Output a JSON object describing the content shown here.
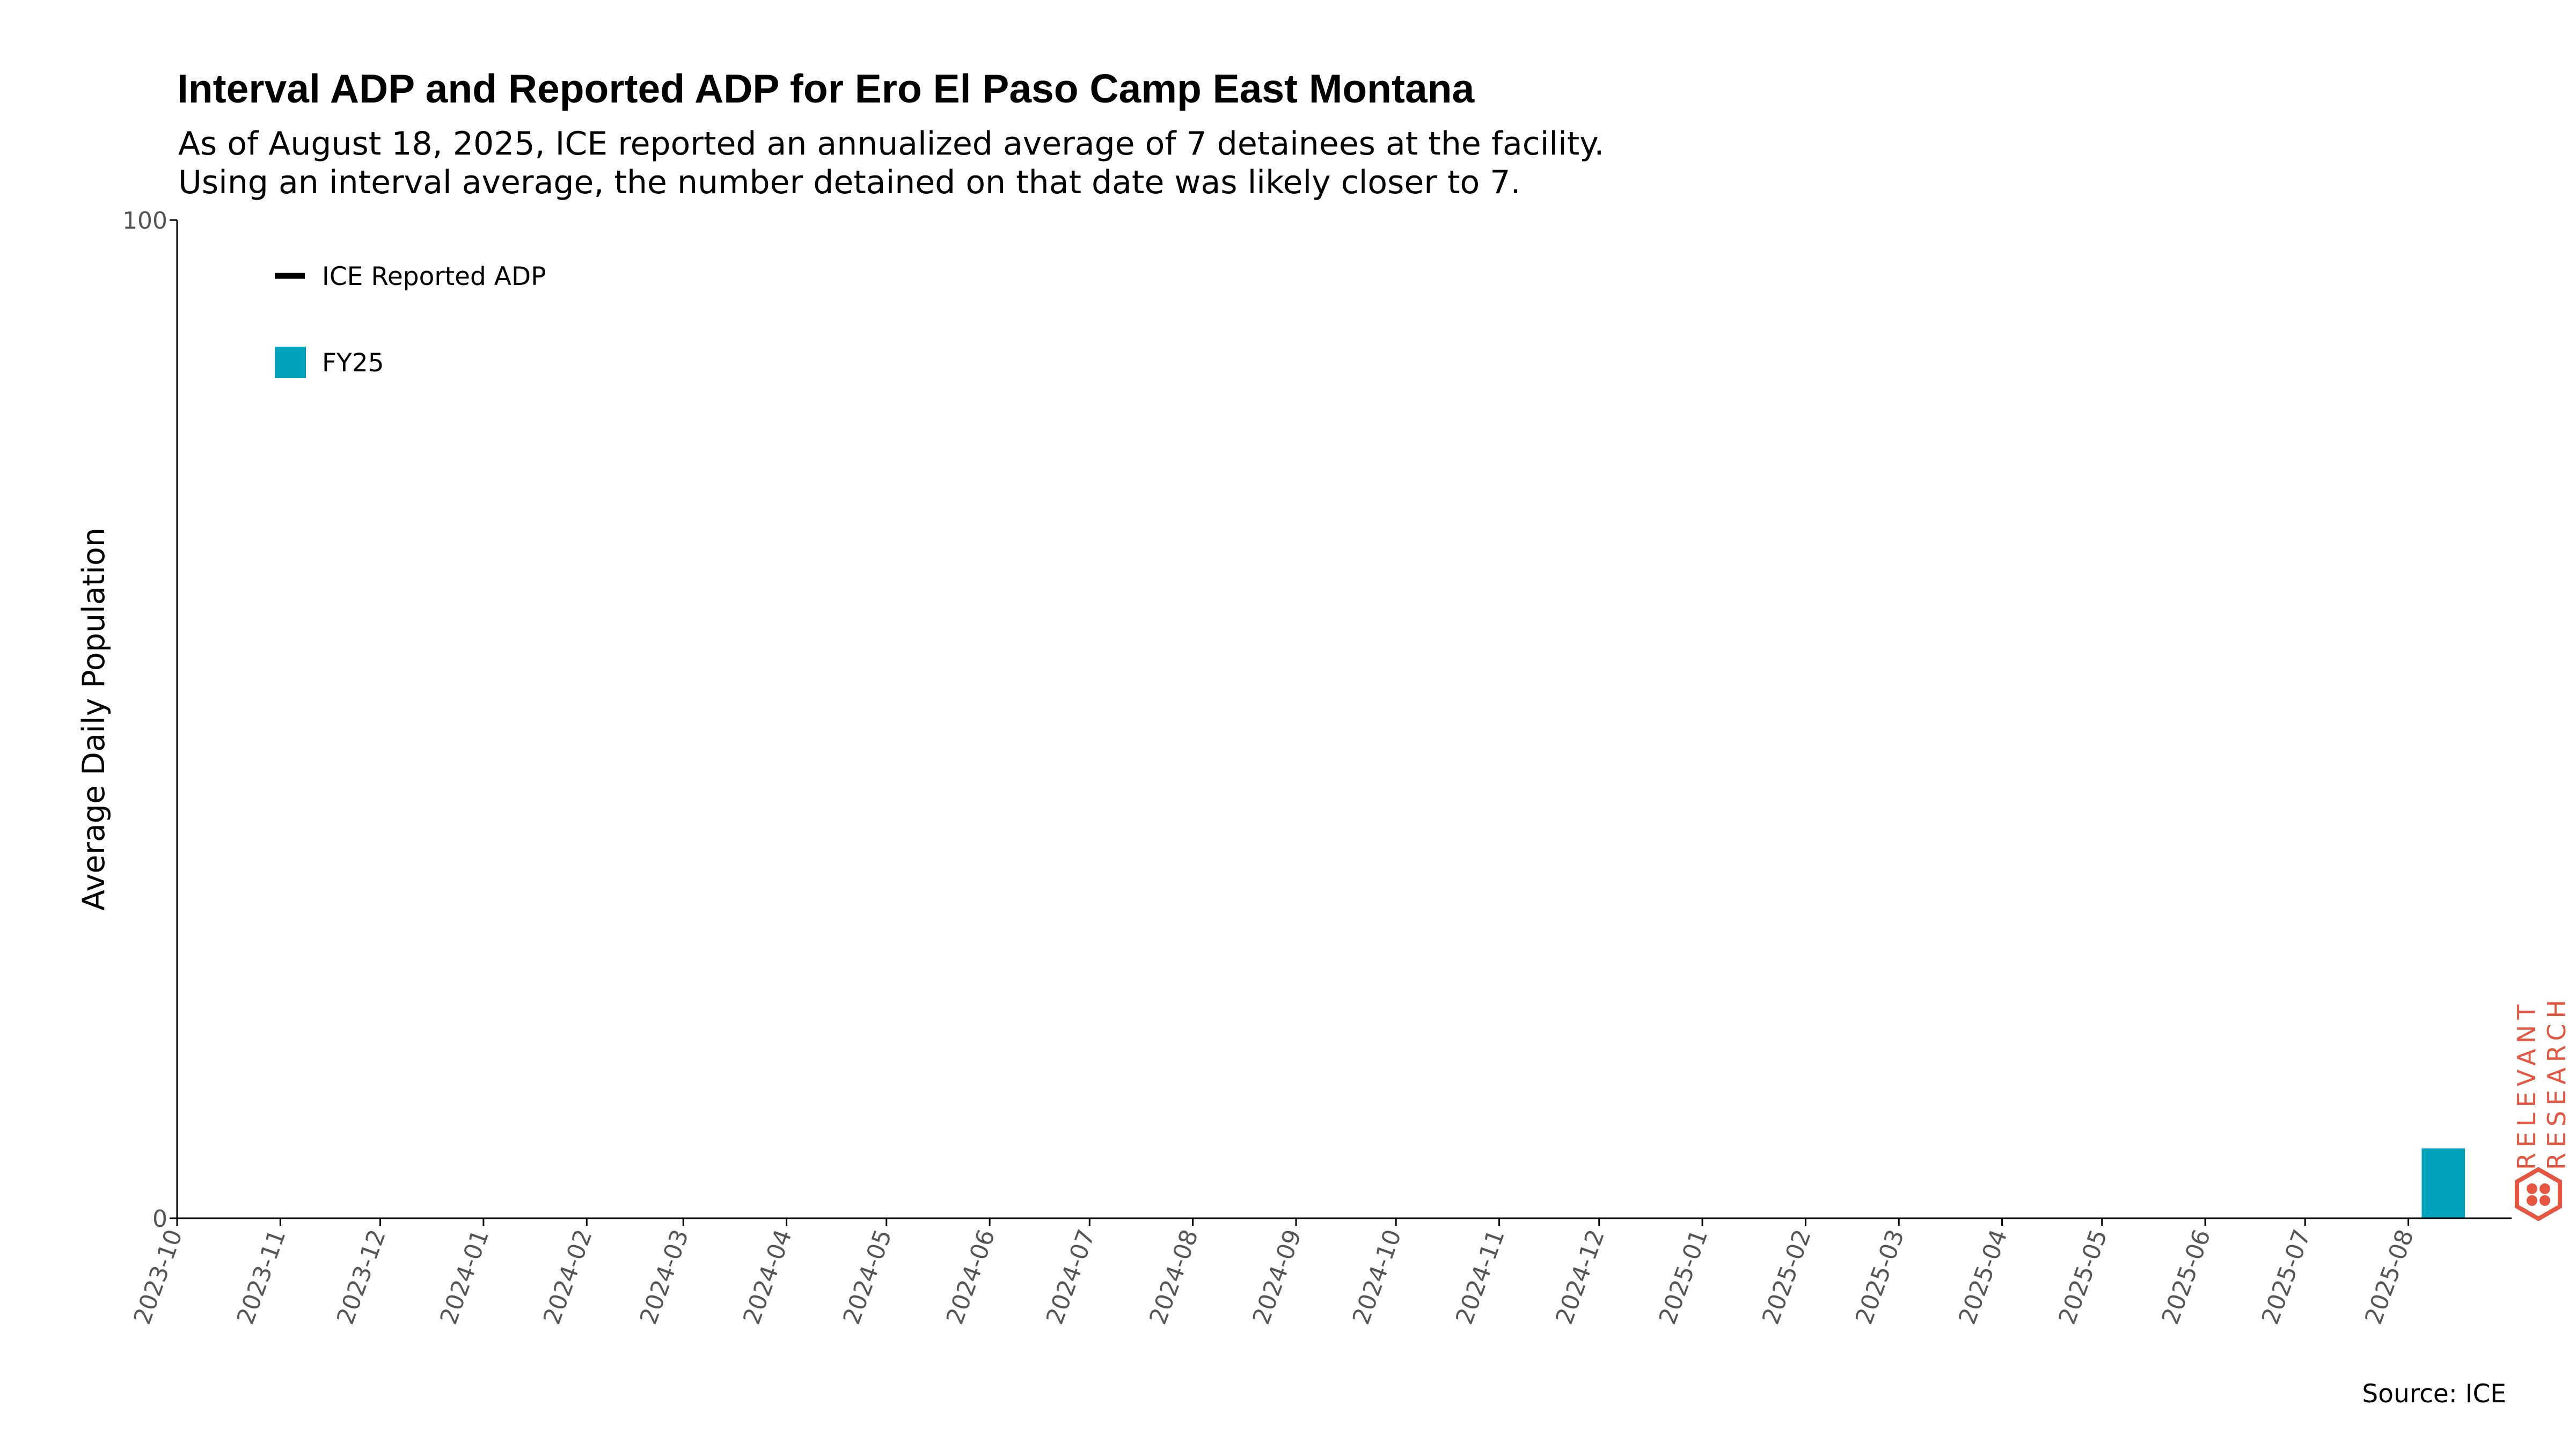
{
  "title": "Interval ADP and Reported ADP for Ero El Paso Camp East Montana",
  "subtitle": [
    "As of August 18, 2025, ICE reported an annualized average of 7 detainees at the facility.",
    "Using an interval average, the number detained on that date was likely closer to 7."
  ],
  "source": "Source: ICE",
  "logo": {
    "line1": "RELEVANT",
    "line2": "RESEARCH"
  },
  "colors": {
    "bar": "#00a3bb",
    "reported_line": "#000000",
    "logo": "#e5553f"
  },
  "chart_data": {
    "type": "bar",
    "ylabel": "Average Daily Population",
    "xlabel": "",
    "ylim": [
      0,
      100
    ],
    "yticks": [
      0,
      100
    ],
    "x_ticks": [
      "2023-10",
      "2023-11",
      "2023-12",
      "2024-01",
      "2024-02",
      "2024-03",
      "2024-04",
      "2024-05",
      "2024-06",
      "2024-07",
      "2024-08",
      "2024-09",
      "2024-10",
      "2024-11",
      "2024-12",
      "2025-01",
      "2025-02",
      "2025-03",
      "2025-04",
      "2025-05",
      "2025-06",
      "2025-07",
      "2025-08"
    ],
    "x_range": [
      "2023-10-01",
      "2025-09-01"
    ],
    "series": [
      {
        "name": "FY25",
        "type": "bar",
        "points": [
          {
            "start": "2025-08-05",
            "end": "2025-08-18",
            "value": 7
          }
        ]
      },
      {
        "name": "ICE Reported ADP",
        "type": "line",
        "points": []
      }
    ],
    "legend": {
      "position": "top-left",
      "entries": [
        "ICE Reported ADP",
        "FY25"
      ]
    },
    "grid": false
  }
}
